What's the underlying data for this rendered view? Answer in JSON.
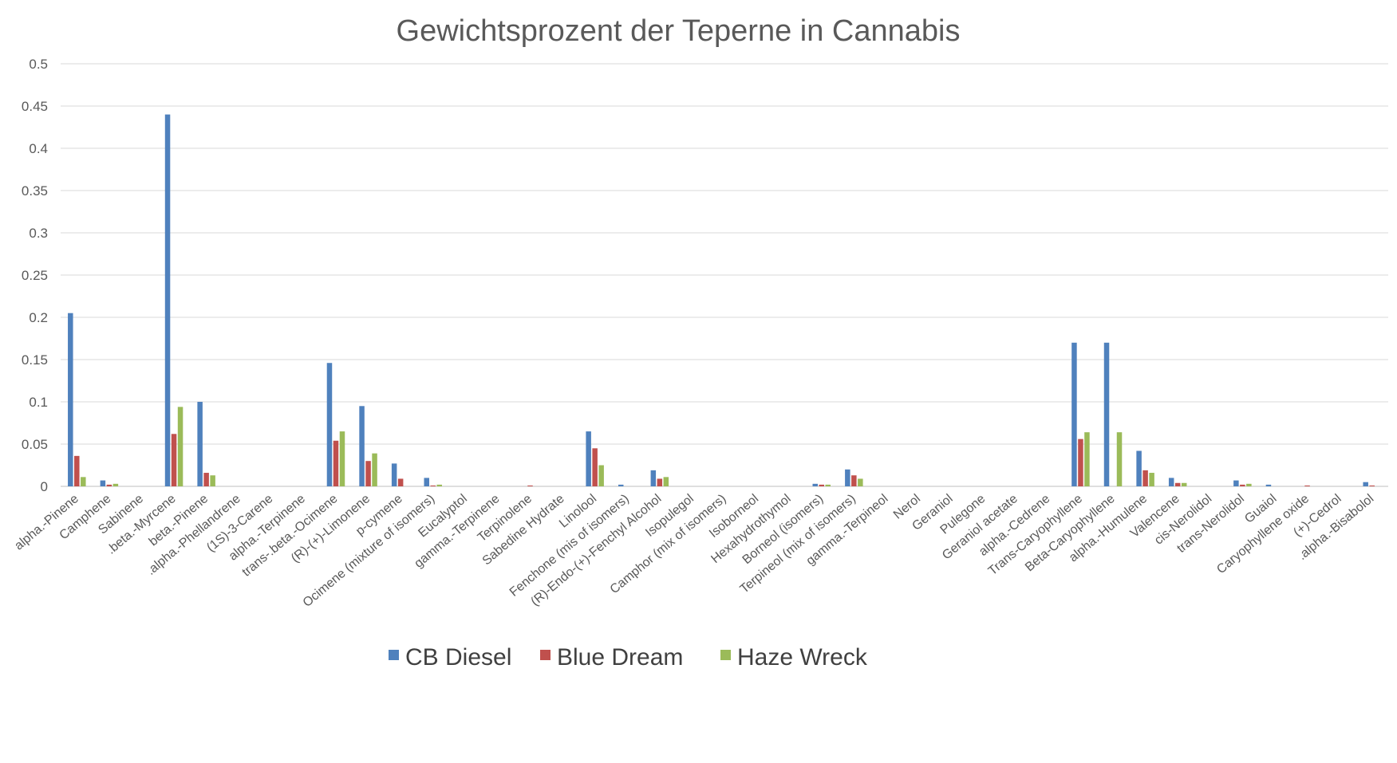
{
  "chart_data": {
    "type": "bar",
    "title": "Gewichtsprozent der Teperne in Cannabis",
    "xlabel": "",
    "ylabel": "",
    "ylim": [
      0,
      0.5
    ],
    "yticks": [
      "0",
      "0.05",
      "0.1",
      "0.15",
      "0.2",
      "0.25",
      "0.3",
      "0.35",
      "0.4",
      "0.45",
      "0.5"
    ],
    "grid": true,
    "legend_position": "bottom",
    "categories": [
      "alpha.-Pinene",
      "Camphene",
      "Sabinene",
      ".beta.-Myrcene",
      "beta.-Pinene",
      ".alpha.-Phellandrene",
      "(1S)-3-Carene",
      "alpha.-Terpinene",
      "trans-.beta.-Ocimene",
      "(R)-(+)-Limonene",
      "p-cymene",
      "Ocimene (mixture of isomers)",
      "Eucalyptol",
      "gamma.-Terpinene",
      "Terpinolene",
      "Sabedine Hydrate",
      "Linolool",
      "Fenchone (mis of isomers)",
      "(R)-Endo-(+)-Fenchyl Alcohol",
      "Isopulegol",
      "Camphor (mix of isomers)",
      "Isoborneol",
      "Hexahydrothymol",
      "Borneol (isomers)",
      "Terpineol (mix of isomers)",
      "gamma.-Terpineol",
      "Nerol",
      "Geraniol",
      "Pulegone",
      "Geraniol acetate",
      "alpha.-Cedrene",
      "Trans-Caryophyllene",
      "Beta-Caryophyllene",
      "alpha.-Humulene",
      "Valencene",
      "cis-Nerolidol",
      "trans-Nerolidol",
      "Guaiol",
      "Caryophyllene oxide",
      "(+)-Cedrol",
      ".alpha.-Bisabolol"
    ],
    "series": [
      {
        "name": "CB Diesel",
        "color": "#4f81bd",
        "values": [
          0.205,
          0.007,
          0,
          0.44,
          0.1,
          0,
          0,
          0,
          0.146,
          0.095,
          0.027,
          0.01,
          0,
          0,
          0,
          0,
          0.065,
          0.002,
          0.019,
          0,
          0,
          0,
          0,
          0.003,
          0.02,
          0,
          0,
          0,
          0,
          0,
          0,
          0.17,
          0.17,
          0.042,
          0.01,
          0,
          0.007,
          0.002,
          0,
          0,
          0.005
        ]
      },
      {
        "name": "Blue Dream",
        "color": "#c0504d",
        "values": [
          0.036,
          0.002,
          0,
          0.062,
          0.016,
          0,
          0,
          0,
          0.054,
          0.03,
          0.009,
          0.001,
          0,
          0,
          0.001,
          0,
          0.045,
          0,
          0.009,
          0,
          0,
          0,
          0,
          0.002,
          0.013,
          0,
          0,
          0,
          0,
          0,
          0,
          0.056,
          0,
          0.019,
          0.004,
          0,
          0.002,
          0,
          0.001,
          0,
          0.001
        ]
      },
      {
        "name": "Haze Wreck",
        "color": "#9bbb59",
        "values": [
          0.011,
          0.003,
          0,
          0.094,
          0.013,
          0,
          0,
          0,
          0.065,
          0.039,
          0,
          0.002,
          0,
          0,
          0,
          0,
          0.025,
          0,
          0.011,
          0,
          0,
          0,
          0,
          0.002,
          0.009,
          0,
          0,
          0,
          0,
          0,
          0,
          0.064,
          0.064,
          0.016,
          0.004,
          0,
          0.003,
          0,
          0,
          0,
          0
        ]
      }
    ]
  }
}
